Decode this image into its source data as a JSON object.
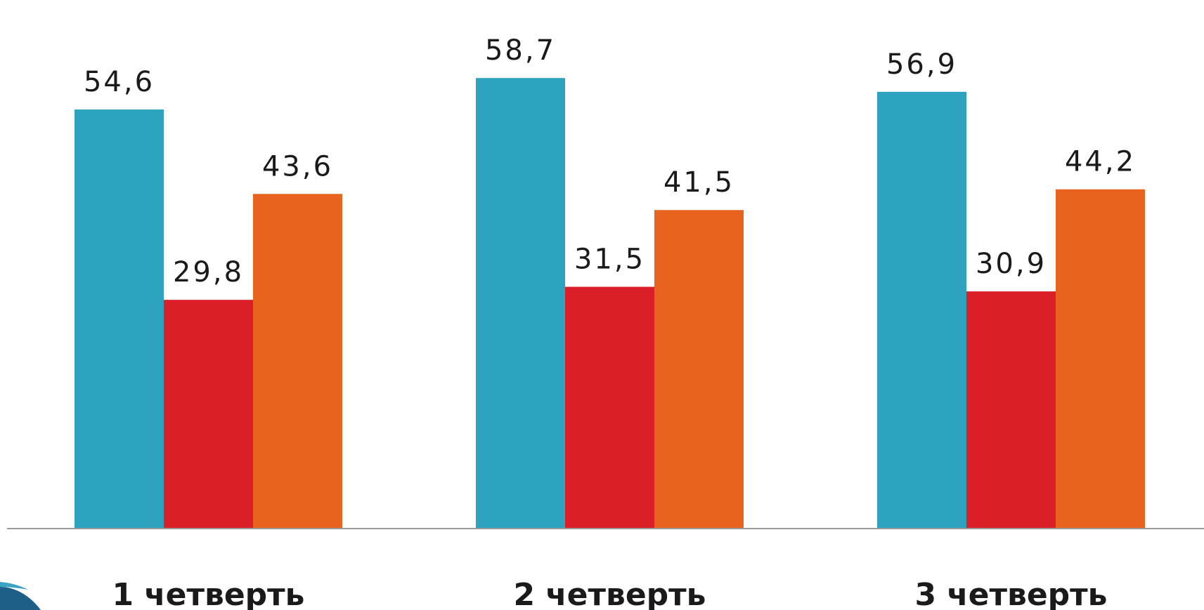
{
  "chart_data": {
    "type": "bar",
    "categories": [
      "1 четверть",
      "2 четверть",
      "3 четверть"
    ],
    "series": [
      {
        "values": [
          54.6,
          58.7,
          56.9
        ],
        "labels": [
          "54,6",
          "58,7",
          "56,9"
        ],
        "color": "#2da3bf"
      },
      {
        "values": [
          29.8,
          31.5,
          30.9
        ],
        "labels": [
          "29,8",
          "31,5",
          "30,9"
        ],
        "color": "#db1f29"
      },
      {
        "values": [
          43.6,
          41.5,
          44.2
        ],
        "labels": [
          "43,6",
          "41,5",
          "44,2"
        ],
        "color": "#e8641e"
      }
    ],
    "ylim": [
      0,
      65
    ],
    "grid": false,
    "legend": "none"
  },
  "colors": {
    "axis": "#9a9a9a",
    "decoration": "#1d5f86",
    "decoration_light": "#3aa2c5"
  }
}
